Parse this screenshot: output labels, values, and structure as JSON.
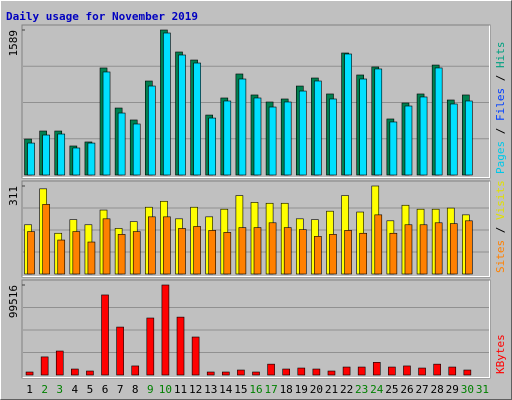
{
  "title": "Daily usage for November 2019",
  "legend_separator": "/",
  "chart_data": [
    {
      "type": "bar",
      "ylim": [
        0,
        1589
      ],
      "yticks": [
        1589
      ],
      "legend": [
        {
          "name": "Pages",
          "color": "#00c8e8"
        },
        {
          "name": "Files",
          "color": "#0040ff"
        },
        {
          "name": "Hits",
          "color": "#00a080"
        }
      ],
      "series": [
        {
          "color": "#008050",
          "values": [
            394,
            482,
            482,
            318,
            362,
            1173,
            734,
            603,
            1030,
            1589,
            1348,
            1260,
            657,
            844,
            1107,
            877,
            800,
            833,
            975,
            1063,
            888,
            1337,
            1096,
            1184,
            614,
            789,
            888,
            1205,
            822,
            877,
            null
          ]
        },
        {
          "color": "#00e0ff",
          "values": [
            350,
            438,
            449,
            296,
            350,
            1129,
            679,
            559,
            975,
            1556,
            1315,
            1227,
            624,
            811,
            1052,
            844,
            745,
            800,
            920,
            1030,
            833,
            1326,
            1052,
            1162,
            581,
            756,
            855,
            1173,
            778,
            811,
            null
          ]
        }
      ]
    },
    {
      "type": "bar",
      "ylim": [
        0,
        311
      ],
      "yticks": [
        311
      ],
      "legend": [
        {
          "name": "Sites",
          "color": "#ff8000"
        },
        {
          "name": "Visits",
          "color": "#e0e000"
        }
      ],
      "series": [
        {
          "color": "#ffff00",
          "values": [
            174,
            301,
            144,
            192,
            174,
            226,
            161,
            185,
            236,
            257,
            195,
            236,
            202,
            229,
            277,
            253,
            250,
            250,
            195,
            192,
            222,
            277,
            219,
            311,
            188,
            243,
            229,
            229,
            233,
            209,
            null
          ]
        },
        {
          "color": "#ff8000",
          "values": [
            150,
            246,
            120,
            150,
            113,
            195,
            140,
            150,
            202,
            202,
            161,
            168,
            154,
            147,
            164,
            164,
            181,
            164,
            157,
            133,
            140,
            154,
            144,
            209,
            144,
            174,
            174,
            181,
            178,
            188,
            null
          ]
        }
      ]
    },
    {
      "type": "bar",
      "ylim": [
        0,
        99516
      ],
      "yticks": [
        99516
      ],
      "legend": [
        {
          "name": "KBytes",
          "color": "#ff0000"
        }
      ],
      "categories": [
        "1",
        "2",
        "3",
        "4",
        "5",
        "6",
        "7",
        "8",
        "9",
        "10",
        "11",
        "12",
        "13",
        "14",
        "15",
        "16",
        "17",
        "18",
        "19",
        "20",
        "21",
        "22",
        "23",
        "24",
        "25",
        "26",
        "27",
        "28",
        "29",
        "30",
        "31"
      ],
      "category_colors": [
        "#000000",
        "#008000",
        "#008000",
        "#000000",
        "#000000",
        "#000000",
        "#000000",
        "#000000",
        "#008000",
        "#008000",
        "#000000",
        "#000000",
        "#000000",
        "#000000",
        "#000000",
        "#008000",
        "#008000",
        "#000000",
        "#000000",
        "#000000",
        "#000000",
        "#000000",
        "#008000",
        "#008000",
        "#000000",
        "#000000",
        "#000000",
        "#000000",
        "#000000",
        "#008000",
        "#008000"
      ],
      "series": [
        {
          "color": "#ff0000",
          "values": [
            3300,
            20000,
            26500,
            6600,
            4400,
            88500,
            53000,
            10000,
            63000,
            99516,
            64000,
            42000,
            3300,
            3300,
            5500,
            3300,
            12000,
            6600,
            7700,
            6600,
            4400,
            8800,
            8800,
            14000,
            8800,
            10000,
            7700,
            12000,
            8800,
            5500,
            null
          ]
        }
      ]
    }
  ]
}
